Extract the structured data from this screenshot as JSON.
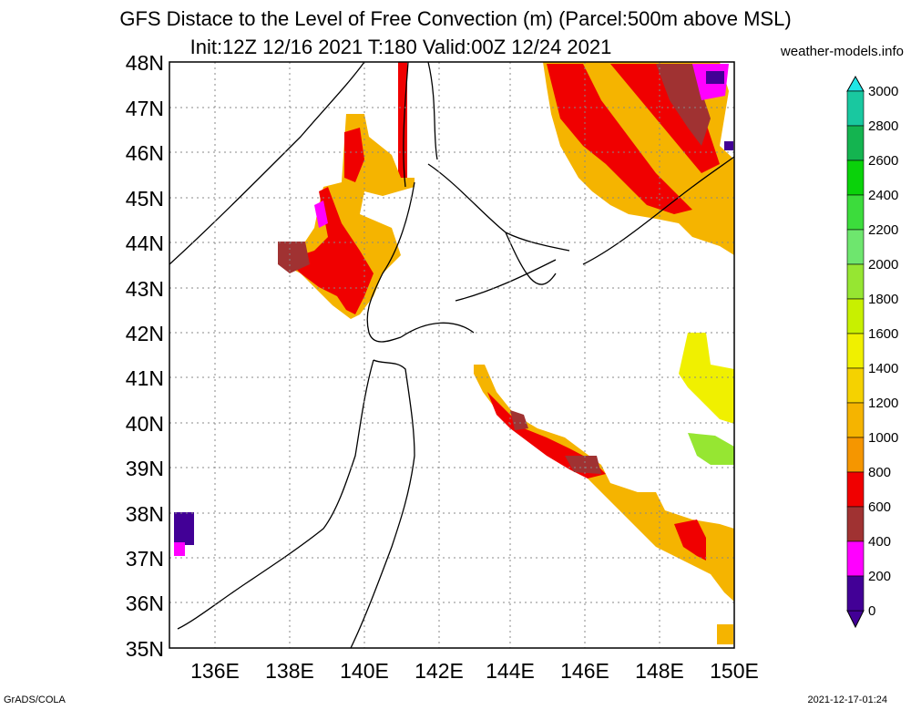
{
  "header": {
    "title_line1": "GFS Distace to the Level of Free Convection (m) (Parcel:500m above MSL)",
    "title_line2": "Init:12Z 12/16 2021 T:180 Valid:00Z 12/24 2021",
    "site": "weather-models.info"
  },
  "footer": {
    "left": "GrADS/COLA",
    "right": "2021-12-17-01:24"
  },
  "map": {
    "lat_labels": [
      "48N",
      "47N",
      "46N",
      "45N",
      "44N",
      "43N",
      "42N",
      "41N",
      "40N",
      "39N",
      "38N",
      "37N",
      "36N",
      "35N"
    ],
    "lon_labels": [
      "136E",
      "138E",
      "140E",
      "142E",
      "144E",
      "146E",
      "148E",
      "150E"
    ]
  },
  "colorbar": {
    "labels": [
      "3000",
      "2800",
      "2600",
      "2400",
      "2200",
      "2000",
      "1800",
      "1600",
      "1400",
      "1200",
      "1000",
      "800",
      "600",
      "400",
      "200",
      "0"
    ],
    "colors": [
      "#20e6e6",
      "#19c8a0",
      "#14b450",
      "#0ad20a",
      "#3cdc3c",
      "#6ee66e",
      "#96e632",
      "#c8f000",
      "#f0f000",
      "#f5d200",
      "#f5b400",
      "#f59600",
      "#f00000",
      "#a03232",
      "#ff00ff",
      "#420096"
    ]
  }
}
